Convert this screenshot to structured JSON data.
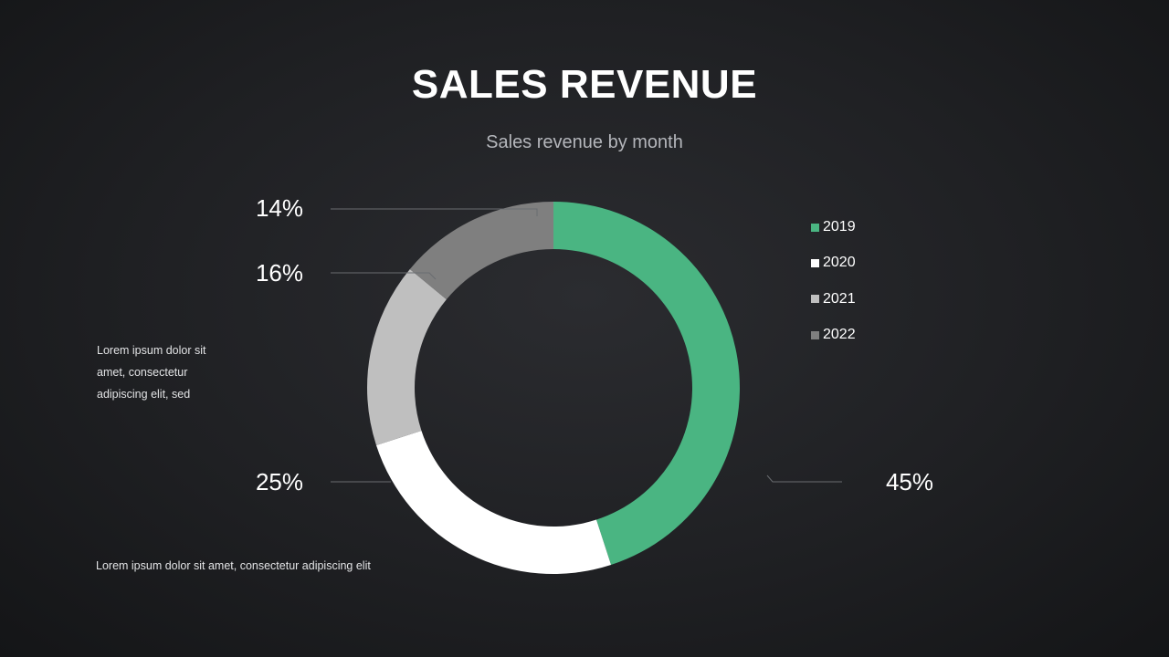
{
  "slide": {
    "title": "SALES REVENUE",
    "subtitle": "Sales revenue by month",
    "note_1": "Lorem ipsum dolor sit amet, consectetur adipiscing elit, sed",
    "note_2": "Lorem ipsum dolor  sit amet, consectetur adipiscing elit"
  },
  "chart_data": {
    "type": "pie",
    "subtype": "donut",
    "title": "SALES REVENUE",
    "subtitle": "Sales revenue by month",
    "categories": [
      "2019",
      "2020",
      "2021",
      "2022"
    ],
    "values": [
      45,
      25,
      16,
      14
    ],
    "value_labels": [
      "45%",
      "25%",
      "16%",
      "14%"
    ],
    "colors": [
      "#4ab582",
      "#ffffff",
      "#bfbfbf",
      "#7f7f7f"
    ],
    "legend": {
      "position": "right",
      "entries": [
        "2019",
        "2020",
        "2021",
        "2022"
      ]
    }
  }
}
